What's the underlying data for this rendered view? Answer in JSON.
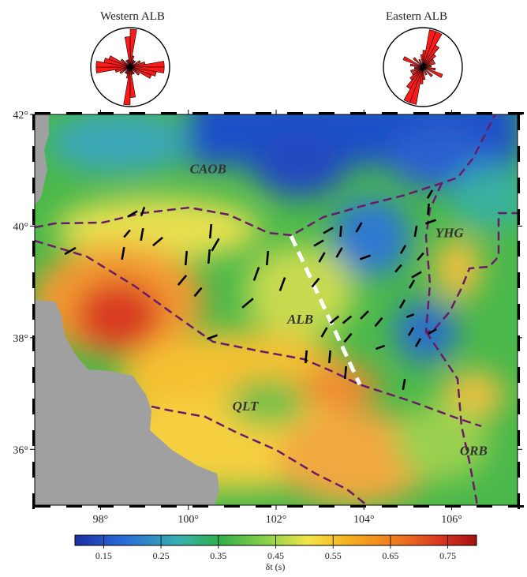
{
  "rose_diagrams": [
    {
      "title": "Western ALB",
      "petals": [
        [
          5,
          10
        ],
        [
          15,
          3
        ],
        [
          25,
          2
        ],
        [
          40,
          2
        ],
        [
          60,
          3
        ],
        [
          75,
          4
        ],
        [
          85,
          9
        ],
        [
          95,
          9
        ],
        [
          105,
          7
        ],
        [
          115,
          6
        ],
        [
          130,
          3
        ],
        [
          150,
          2
        ],
        [
          165,
          2
        ],
        [
          175,
          8
        ]
      ]
    },
    {
      "title": "Eastern ALB",
      "petals": [
        [
          5,
          4
        ],
        [
          15,
          9
        ],
        [
          25,
          9
        ],
        [
          35,
          6
        ],
        [
          45,
          4
        ],
        [
          55,
          3
        ],
        [
          70,
          3
        ],
        [
          85,
          2
        ],
        [
          100,
          3
        ],
        [
          115,
          5
        ],
        [
          135,
          3
        ],
        [
          155,
          2
        ],
        [
          175,
          3
        ]
      ]
    }
  ],
  "map": {
    "lon_range": [
      96.5,
      107.5
    ],
    "lat_range": [
      35,
      42
    ],
    "x_ticks": [
      {
        "value": 98,
        "label": "98°"
      },
      {
        "value": 100,
        "label": "100°"
      },
      {
        "value": 102,
        "label": "102°"
      },
      {
        "value": 104,
        "label": "104°"
      },
      {
        "value": 106,
        "label": "106°"
      }
    ],
    "y_ticks": [
      {
        "value": 42,
        "label": "42°"
      },
      {
        "value": 40,
        "label": "40°"
      },
      {
        "value": 38,
        "label": "38°"
      },
      {
        "value": 36,
        "label": "36°"
      }
    ],
    "regions": [
      {
        "label": "CAOB",
        "lon": 100.45,
        "lat": 40.95
      },
      {
        "label": "YHG",
        "lon": 105.95,
        "lat": 39.8
      },
      {
        "label": "ALB",
        "lon": 102.55,
        "lat": 38.25
      },
      {
        "label": "QLT",
        "lon": 101.3,
        "lat": 36.7
      },
      {
        "label": "ORB",
        "lon": 106.5,
        "lat": 35.9
      }
    ],
    "colors": {
      "land_mask": "#a0a0a0",
      "boundary": "#6a1a6a",
      "divider": "#ffffff",
      "stick": "#000000"
    }
  },
  "colorbar": {
    "ticks": [
      "0.15",
      "0.25",
      "0.35",
      "0.45",
      "0.55",
      "0.65",
      "0.75"
    ],
    "label": "δt (s)",
    "colors": [
      "#1a2ea3",
      "#2a6ad8",
      "#38b0b0",
      "#2fb04a",
      "#8fd14a",
      "#f2e64a",
      "#f5b020",
      "#ee7020",
      "#d43020",
      "#a51010"
    ]
  }
}
